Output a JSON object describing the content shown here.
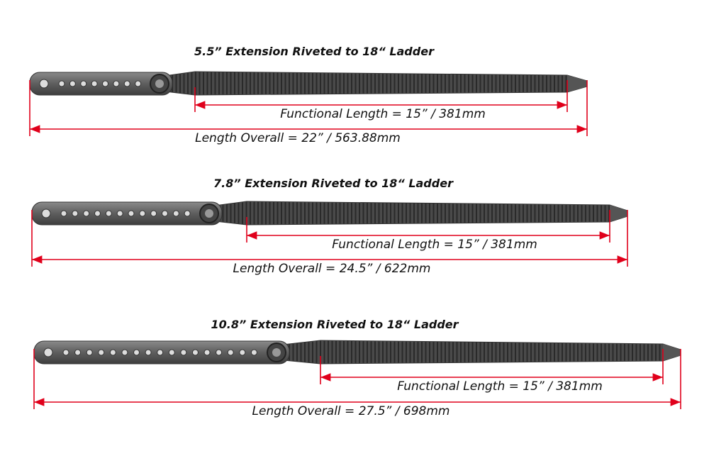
{
  "straps": [
    {
      "title": "5.5” Extension Riveted to 18“ Ladder",
      "functional_length": "Functional Length = 15” / 381mm",
      "length_overall": "Length Overall = 22” / 563.88mm"
    },
    {
      "title": "7.8” Extension Riveted to 18“ Ladder",
      "functional_length": "Functional Length = 15” / 381mm",
      "length_overall": "Length Overall = 24.5” / 622mm"
    },
    {
      "title": "10.8” Extension Riveted to 18“ Ladder",
      "functional_length": "Functional Length = 15” / 381mm",
      "length_overall": "Length Overall = 27.5” / 698mm"
    }
  ]
}
